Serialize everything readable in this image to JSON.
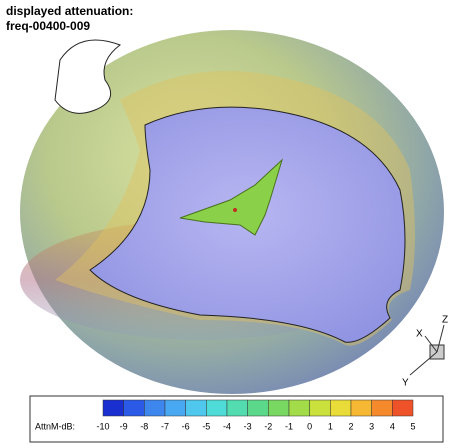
{
  "header": {
    "lines": [
      "displayed attenuation:",
      "freq-00400-009"
    ]
  },
  "legend": {
    "label": "AttnM-dB:",
    "ticks": [
      -10,
      -9,
      -8,
      -7,
      -6,
      -5,
      -4,
      -3,
      -2,
      -1,
      0,
      1,
      2,
      3,
      4,
      5
    ],
    "colors": [
      "#1a2fd0",
      "#2a5ae6",
      "#3c86ee",
      "#48a8f2",
      "#50c8ee",
      "#4fdcd8",
      "#52dcb0",
      "#5cd88a",
      "#78d862",
      "#a2dc48",
      "#cae03c",
      "#eadc38",
      "#f6b832",
      "#f48a2c",
      "#ee5228"
    ]
  },
  "axes": {
    "x": "X",
    "y": "Y",
    "z": "Z"
  }
}
